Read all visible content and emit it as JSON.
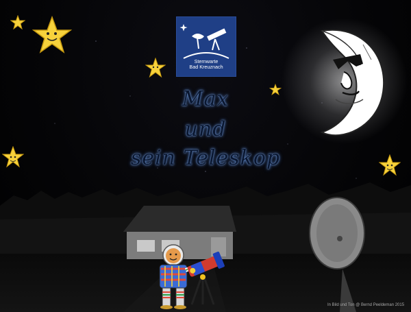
{
  "logo": {
    "line1": "Sternwarte",
    "line2": "Bad Kreuznach"
  },
  "title": {
    "line1": "Max",
    "line2": "und",
    "line3": "sein Teleskop"
  },
  "credit": "In Bild und Ton @ Bernd Peeldeman 2015",
  "icons": [
    "star-icon",
    "moon-icon",
    "telescope-icon",
    "radio-dish-icon",
    "house-icon",
    "max-character-icon"
  ],
  "colors": {
    "background": "#000000",
    "logo_bg": "#1f3f86",
    "star": "#f7d23c",
    "title_glow": "#3a66b0"
  }
}
